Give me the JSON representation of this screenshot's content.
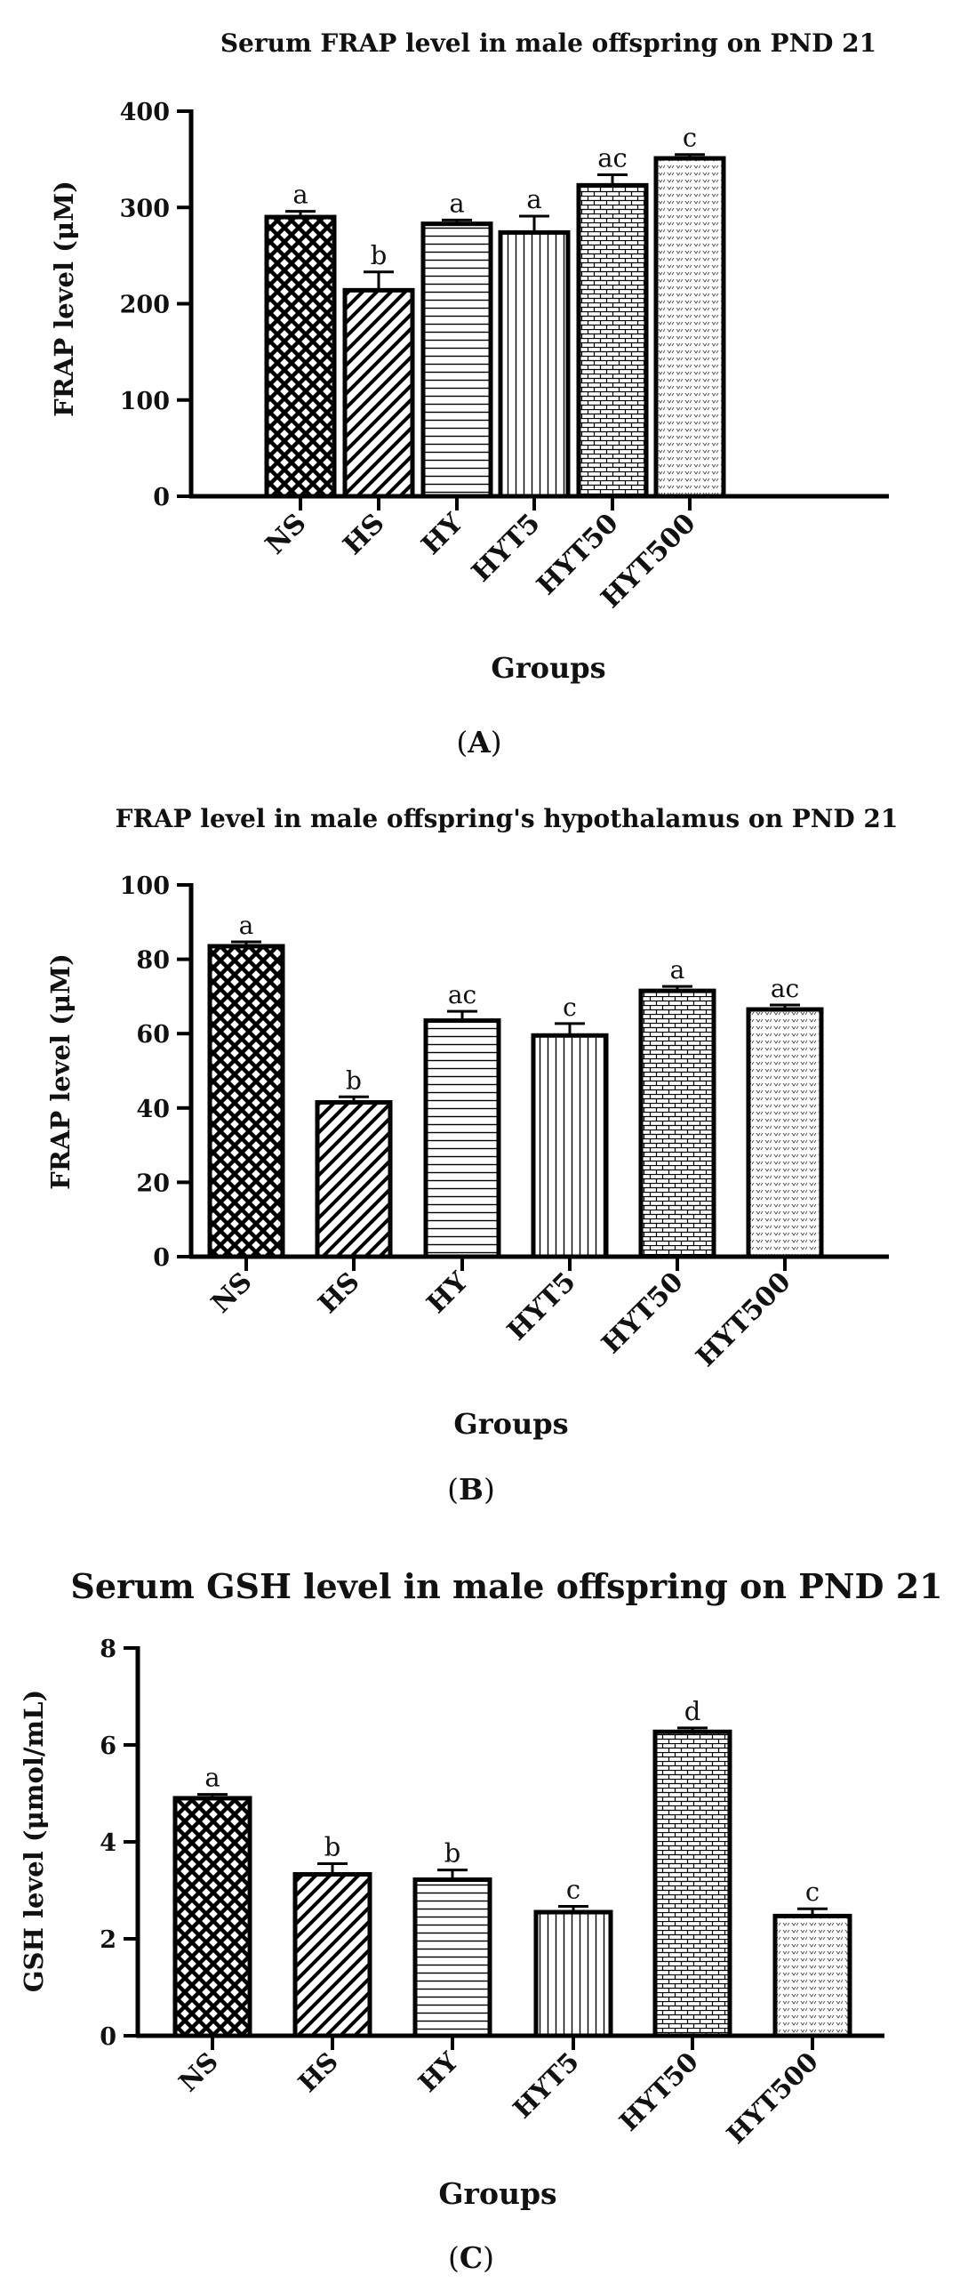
{
  "figure": {
    "panels": [
      {
        "letter_open": "(",
        "letter": "A",
        "letter_close": ")"
      },
      {
        "letter_open": "(",
        "letter": "B",
        "letter_close": ")"
      },
      {
        "letter_open": "(",
        "letter": "C",
        "letter_close": ")"
      }
    ]
  },
  "chart_data": [
    {
      "type": "bar",
      "title": "Serum FRAP level in male offspring on PND 21",
      "xlabel": "Groups",
      "ylabel": "FRAP level (μM)",
      "ylim": [
        0,
        400
      ],
      "yticks": [
        0,
        100,
        200,
        300,
        400
      ],
      "categories": [
        "NS",
        "HS",
        "HY",
        "HYT5",
        "HYT50",
        "HYT500"
      ],
      "values": [
        290,
        214,
        283,
        274,
        323,
        351
      ],
      "errors": [
        6,
        19,
        4,
        17,
        11,
        4
      ],
      "significance": [
        "a",
        "b",
        "a",
        "a",
        "ac",
        "c"
      ],
      "patterns": [
        "crosshatch",
        "diagonal",
        "horizontal",
        "vertical",
        "brick",
        "zigzag"
      ]
    },
    {
      "type": "bar",
      "title": "FRAP level in male offspring's hypothalamus on PND 21",
      "xlabel": "Groups",
      "ylabel": "FRAP level (μM)",
      "ylim": [
        0,
        100
      ],
      "yticks": [
        0,
        20,
        40,
        60,
        80,
        100
      ],
      "categories": [
        "NS",
        "HS",
        "HY",
        "HYT5",
        "HYT50",
        "HYT500"
      ],
      "values": [
        83.5,
        41.5,
        63.5,
        59.5,
        71.5,
        66.5
      ],
      "errors": [
        1.2,
        1.5,
        2.5,
        3.2,
        1.2,
        1.2
      ],
      "significance": [
        "a",
        "b",
        "ac",
        "c",
        "a",
        "ac"
      ],
      "patterns": [
        "crosshatch",
        "diagonal",
        "horizontal",
        "vertical",
        "brick",
        "zigzag"
      ]
    },
    {
      "type": "bar",
      "title": "Serum GSH level in male offspring on PND 21",
      "xlabel": "Groups",
      "ylabel": "GSH level (μmol/mL)",
      "ylim": [
        0,
        8
      ],
      "yticks": [
        0,
        2,
        4,
        6,
        8
      ],
      "categories": [
        "NS",
        "HS",
        "HY",
        "HYT5",
        "HYT50",
        "HYT500"
      ],
      "values": [
        4.9,
        3.33,
        3.22,
        2.55,
        6.27,
        2.47
      ],
      "errors": [
        0.08,
        0.22,
        0.2,
        0.12,
        0.08,
        0.15
      ],
      "significance": [
        "a",
        "b",
        "b",
        "c",
        "d",
        "c"
      ],
      "patterns": [
        "crosshatch",
        "diagonal",
        "horizontal",
        "vertical",
        "brick",
        "zigzag"
      ]
    }
  ]
}
